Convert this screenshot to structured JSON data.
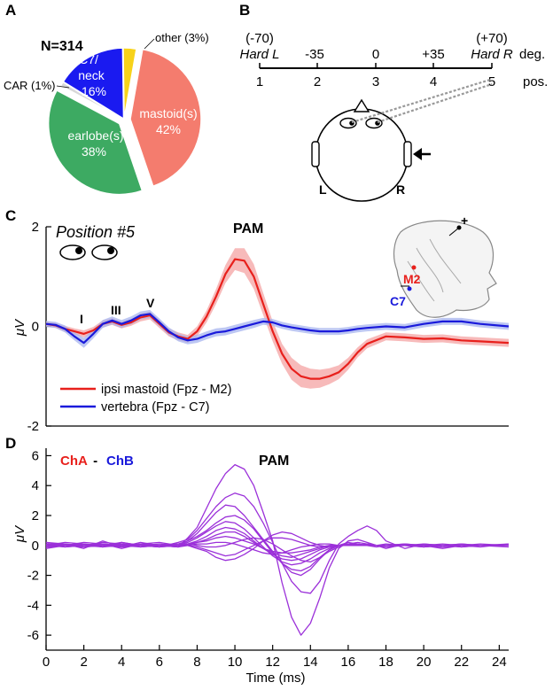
{
  "colors": {
    "red": "#e8201c",
    "blue": "#1a1adb",
    "purple": "#9b30d9",
    "red_band": "#f4a3a3",
    "blue_band": "#a7b4ef",
    "pie_mastoid": "#f47c6e",
    "pie_earlobe": "#3daa62",
    "pie_c7": "#1a1af0",
    "pie_other": "#f7d21a",
    "pie_car": "#d8d8d8"
  },
  "panels": {
    "a": "A",
    "b": "B",
    "c": "C",
    "d": "D"
  },
  "chart_data": [
    {
      "type": "pie",
      "panel": "A",
      "title": "N=314",
      "slices": [
        {
          "label": "mastoid(s)",
          "value": 42,
          "pct_label": "42%",
          "color": "#f47c6e",
          "exploded": true
        },
        {
          "label": "earlobe(s)",
          "value": 38,
          "pct_label": "38%",
          "color": "#3daa62",
          "exploded": true
        },
        {
          "label": "CAR (1%)",
          "value": 1,
          "pct_label": "",
          "color": "#d8d8d8",
          "exploded": false
        },
        {
          "label": "C7/ neck",
          "value": 16,
          "pct_label": "16%",
          "color": "#1a1af0",
          "exploded": false
        },
        {
          "label": "other (3%)",
          "value": 3,
          "pct_label": "",
          "color": "#f7d21a",
          "exploded": false
        }
      ],
      "labels": {
        "c7_line1": "C7/",
        "c7_line2": "neck",
        "c7_pct": "16%",
        "mastoid_name": "mastoid(s)",
        "mastoid_pct": "42%",
        "earlobe_name": "earlobe(s)",
        "earlobe_pct": "38%",
        "car": "CAR (1%)",
        "other": "other (3%)"
      }
    },
    {
      "type": "diagram-scale",
      "panel": "B",
      "positions": [
        "1",
        "2",
        "3",
        "4",
        "5"
      ],
      "degrees": [
        "-35",
        "0",
        "+35"
      ],
      "left_deg": "(-70)",
      "right_deg": "(+70)",
      "left_name": "Hard L",
      "right_name": "Hard R",
      "deg_unit": "deg.",
      "pos_unit": "pos.",
      "head_left": "L",
      "head_right": "R"
    },
    {
      "type": "line",
      "panel": "C",
      "annotation_title": "Position #5",
      "peak_label": "PAM",
      "wave_labels": [
        "I",
        "III",
        "V"
      ],
      "inset_labels": {
        "m2": "M2",
        "c7": "C7",
        "plus": "+"
      },
      "ylabel": "μV",
      "ylim": [
        -2,
        2
      ],
      "yticks": [
        "-2",
        "0",
        "2"
      ],
      "xlim": [
        0,
        24.5
      ],
      "series": [
        {
          "name": "ipsi mastoid (Fpz - M2)",
          "color": "#e8201c",
          "x": [
            0,
            0.5,
            1,
            1.5,
            2,
            2.5,
            3,
            3.5,
            4,
            4.5,
            5,
            5.5,
            6,
            6.5,
            7,
            7.5,
            8,
            8.5,
            9,
            9.5,
            10,
            10.5,
            11,
            11.5,
            12,
            12.5,
            13,
            13.5,
            14,
            14.5,
            15,
            15.5,
            16,
            16.5,
            17,
            18,
            19,
            20,
            21,
            22,
            23,
            24.5
          ],
          "y": [
            0.05,
            0.02,
            -0.05,
            -0.1,
            -0.15,
            -0.08,
            0.05,
            0.1,
            0.03,
            0.08,
            0.18,
            0.22,
            0.05,
            -0.12,
            -0.2,
            -0.25,
            -0.1,
            0.2,
            0.6,
            1.05,
            1.35,
            1.32,
            1.0,
            0.45,
            -0.1,
            -0.55,
            -0.85,
            -1.0,
            -1.05,
            -1.05,
            -1.0,
            -0.92,
            -0.75,
            -0.52,
            -0.35,
            -0.2,
            -0.22,
            -0.25,
            -0.24,
            -0.28,
            -0.3,
            -0.33
          ],
          "band": [
            0.05,
            0.05,
            0.06,
            0.06,
            0.07,
            0.07,
            0.07,
            0.07,
            0.07,
            0.07,
            0.08,
            0.08,
            0.08,
            0.08,
            0.08,
            0.08,
            0.1,
            0.12,
            0.15,
            0.18,
            0.22,
            0.25,
            0.25,
            0.22,
            0.2,
            0.2,
            0.22,
            0.22,
            0.2,
            0.18,
            0.16,
            0.14,
            0.12,
            0.1,
            0.09,
            0.08,
            0.08,
            0.08,
            0.08,
            0.08,
            0.08,
            0.08
          ]
        },
        {
          "name": "vertebra (Fpz - C7)",
          "color": "#1a1adb",
          "x": [
            0,
            0.5,
            1,
            1.5,
            2,
            2.5,
            3,
            3.5,
            4,
            4.5,
            5,
            5.5,
            6,
            6.5,
            7,
            7.5,
            8,
            8.5,
            9,
            9.5,
            10,
            10.5,
            11,
            11.5,
            12,
            12.5,
            13,
            13.5,
            14,
            14.5,
            15,
            15.5,
            16,
            16.5,
            17,
            18,
            19,
            20,
            21,
            22,
            23,
            24.5
          ],
          "y": [
            0.05,
            0.03,
            -0.05,
            -0.2,
            -0.33,
            -0.15,
            0.05,
            0.12,
            0.05,
            0.12,
            0.22,
            0.25,
            0.08,
            -0.1,
            -0.22,
            -0.28,
            -0.25,
            -0.18,
            -0.12,
            -0.1,
            -0.05,
            0.0,
            0.05,
            0.1,
            0.08,
            0.02,
            -0.02,
            -0.05,
            -0.08,
            -0.1,
            -0.1,
            -0.1,
            -0.08,
            -0.05,
            -0.03,
            0.0,
            -0.02,
            0.05,
            0.1,
            0.1,
            0.05,
            0.0
          ],
          "band": [
            0.06,
            0.06,
            0.07,
            0.08,
            0.1,
            0.09,
            0.08,
            0.08,
            0.08,
            0.08,
            0.08,
            0.08,
            0.08,
            0.08,
            0.08,
            0.08,
            0.08,
            0.08,
            0.08,
            0.08,
            0.08,
            0.08,
            0.08,
            0.07,
            0.07,
            0.07,
            0.07,
            0.07,
            0.07,
            0.07,
            0.07,
            0.07,
            0.07,
            0.07,
            0.07,
            0.07,
            0.07,
            0.07,
            0.07,
            0.07,
            0.07,
            0.07
          ]
        }
      ]
    },
    {
      "type": "line",
      "panel": "D",
      "title_a": "ChA",
      "title_sep": " - ",
      "title_b": "ChB",
      "peak_label": "PAM",
      "xlabel": "Time (ms)",
      "ylabel": "μV",
      "ylim": [
        -7,
        6.5
      ],
      "yticks": [
        "-6",
        "-4",
        "-2",
        "0",
        "2",
        "4",
        "6"
      ],
      "xlim": [
        0,
        24.5
      ],
      "xticks": [
        "0",
        "2",
        "4",
        "6",
        "8",
        "10",
        "12",
        "14",
        "16",
        "18",
        "20",
        "22",
        "24"
      ],
      "series_color": "#9b30d9",
      "x": [
        0,
        1,
        2,
        3,
        4,
        5,
        6,
        7,
        7.5,
        8,
        8.5,
        9,
        9.5,
        10,
        10.5,
        11,
        11.5,
        12,
        12.5,
        13,
        13.5,
        14,
        14.5,
        15,
        15.5,
        16,
        16.5,
        17,
        17.5,
        18,
        19,
        20,
        21,
        22,
        23,
        24.5
      ],
      "series": [
        {
          "values": [
            0.2,
            0.1,
            -0.2,
            0.3,
            -0.1,
            0.2,
            0.0,
            -0.1,
            0.5,
            1.2,
            2.5,
            3.8,
            4.8,
            5.4,
            5.1,
            4.0,
            2.2,
            0.3,
            -2.5,
            -4.8,
            -6.0,
            -5.2,
            -3.5,
            -1.5,
            -0.2,
            0.3,
            0.4,
            0.2,
            0.0,
            -0.2,
            0.1,
            -0.1,
            0.0,
            0.1,
            0.0,
            -0.1
          ]
        },
        {
          "values": [
            0.0,
            0.2,
            0.1,
            -0.1,
            0.2,
            0.0,
            -0.1,
            0.2,
            0.4,
            1.0,
            1.8,
            2.6,
            3.2,
            3.5,
            3.3,
            2.6,
            1.5,
            0.2,
            -1.2,
            -2.4,
            -3.1,
            -3.2,
            -2.4,
            -1.0,
            0.1,
            0.6,
            1.0,
            1.3,
            1.0,
            0.3,
            -0.2,
            0.1,
            0.0,
            -0.1,
            0.0,
            0.1
          ]
        },
        {
          "values": [
            -0.2,
            0.0,
            0.2,
            0.1,
            -0.2,
            0.1,
            0.2,
            0.0,
            0.3,
            0.8,
            1.5,
            2.2,
            2.7,
            2.6,
            2.0,
            1.2,
            0.4,
            -0.4,
            -1.2,
            -1.8,
            -2.0,
            -1.6,
            -0.9,
            -0.3,
            0.0,
            0.2,
            0.1,
            0.0,
            -0.1,
            0.0,
            0.1,
            0.0,
            -0.2,
            0.0,
            0.1,
            0.0
          ]
        },
        {
          "values": [
            0.1,
            -0.1,
            0.0,
            0.2,
            0.1,
            -0.1,
            0.0,
            0.1,
            0.3,
            0.6,
            1.0,
            1.5,
            1.9,
            2.0,
            1.7,
            1.1,
            0.3,
            -0.5,
            -1.2,
            -1.6,
            -1.7,
            -1.4,
            -0.8,
            -0.3,
            0.0,
            0.1,
            0.0,
            0.1,
            0.0,
            -0.1,
            0.0,
            0.1,
            0.0,
            0.0,
            -0.1,
            0.1
          ]
        },
        {
          "values": [
            0.0,
            0.1,
            -0.1,
            0.0,
            0.2,
            0.0,
            -0.1,
            0.0,
            0.2,
            0.5,
            0.9,
            1.3,
            1.6,
            1.5,
            1.1,
            0.5,
            -0.1,
            -0.7,
            -1.1,
            -1.3,
            -1.2,
            -0.9,
            -0.5,
            -0.2,
            0.0,
            0.1,
            0.1,
            0.0,
            0.0,
            0.0,
            0.0,
            -0.1,
            0.0,
            0.1,
            0.0,
            0.0
          ]
        },
        {
          "values": [
            -0.1,
            0.0,
            0.1,
            -0.1,
            0.0,
            0.1,
            0.0,
            -0.1,
            0.1,
            0.3,
            0.6,
            1.0,
            1.2,
            1.1,
            0.8,
            0.3,
            -0.2,
            -0.6,
            -0.9,
            -1.0,
            -0.9,
            -0.6,
            -0.3,
            -0.1,
            0.0,
            0.1,
            0.0,
            0.0,
            0.0,
            0.0,
            0.1,
            0.0,
            0.0,
            -0.1,
            0.0,
            0.0
          ]
        },
        {
          "values": [
            0.2,
            0.0,
            0.1,
            0.0,
            -0.1,
            0.0,
            0.1,
            0.0,
            0.1,
            0.2,
            0.4,
            0.7,
            0.9,
            0.9,
            0.6,
            0.2,
            -0.2,
            -0.5,
            -0.7,
            -0.8,
            -0.6,
            -0.4,
            -0.2,
            0.0,
            0.0,
            0.0,
            0.1,
            0.0,
            0.0,
            0.0,
            0.0,
            0.0,
            0.1,
            0.0,
            0.0,
            0.0
          ]
        },
        {
          "values": [
            0.0,
            -0.1,
            0.0,
            0.1,
            0.0,
            -0.1,
            0.0,
            0.1,
            0.0,
            0.2,
            0.3,
            0.5,
            0.6,
            0.5,
            0.3,
            0.1,
            -0.2,
            -0.4,
            -0.5,
            -0.5,
            -0.4,
            -0.3,
            -0.1,
            0.0,
            0.0,
            0.0,
            0.0,
            0.1,
            0.0,
            0.0,
            0.0,
            0.0,
            0.0,
            0.0,
            0.0,
            0.0
          ]
        },
        {
          "values": [
            0.1,
            0.0,
            -0.1,
            0.0,
            0.1,
            0.0,
            0.0,
            -0.1,
            0.0,
            -0.2,
            -0.4,
            -0.8,
            -1.0,
            -0.9,
            -0.6,
            -0.2,
            0.3,
            0.7,
            0.9,
            0.8,
            0.5,
            0.2,
            0.0,
            -0.1,
            0.0,
            0.0,
            0.0,
            0.0,
            0.0,
            0.1,
            0.0,
            -0.1,
            0.0,
            0.0,
            0.0,
            0.0
          ]
        },
        {
          "values": [
            -0.1,
            0.0,
            0.0,
            0.1,
            0.0,
            0.0,
            -0.1,
            0.0,
            0.0,
            -0.1,
            -0.3,
            -0.5,
            -0.7,
            -0.6,
            -0.3,
            0.0,
            0.3,
            0.5,
            0.5,
            0.4,
            0.2,
            0.0,
            -0.1,
            -0.1,
            0.0,
            0.0,
            0.0,
            0.0,
            0.0,
            0.0,
            0.0,
            0.0,
            -0.1,
            0.0,
            0.0,
            0.0
          ]
        },
        {
          "values": [
            0.0,
            0.1,
            0.0,
            -0.1,
            0.1,
            0.0,
            0.0,
            0.0,
            0.0,
            0.1,
            0.1,
            0.2,
            0.2,
            0.1,
            -0.1,
            -0.3,
            -0.5,
            -0.6,
            -0.5,
            -0.3,
            -0.1,
            0.0,
            0.1,
            0.1,
            0.0,
            0.0,
            0.0,
            0.0,
            0.0,
            0.0,
            0.0,
            0.0,
            0.0,
            0.0,
            0.0,
            0.0
          ]
        },
        {
          "values": [
            0.1,
            0.0,
            0.0,
            0.0,
            -0.1,
            0.1,
            0.0,
            0.0,
            0.1,
            0.0,
            -0.1,
            -0.1,
            0.0,
            0.2,
            0.4,
            0.5,
            0.4,
            0.1,
            -0.3,
            -0.7,
            -1.0,
            -1.1,
            -0.8,
            -0.4,
            -0.1,
            0.1,
            0.2,
            0.1,
            0.0,
            0.0,
            0.0,
            0.0,
            0.0,
            0.0,
            0.0,
            0.0
          ]
        }
      ]
    }
  ]
}
